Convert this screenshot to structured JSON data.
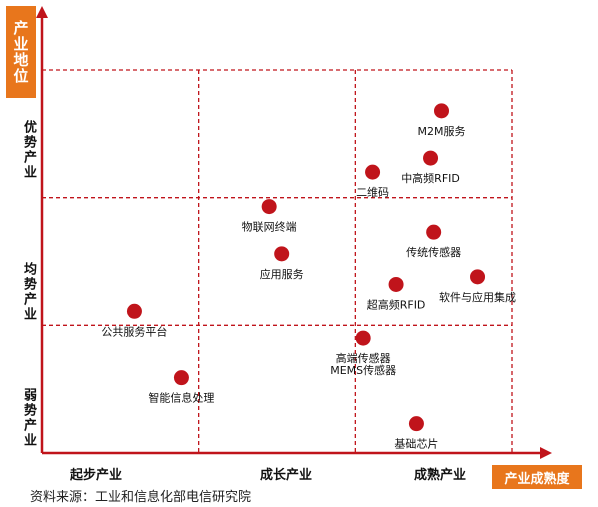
{
  "chart_data": {
    "type": "scatter",
    "xlabel": "产业成熟度",
    "ylabel": "产业地位",
    "x_categories": [
      "起步产业",
      "成长产业",
      "成熟产业"
    ],
    "y_categories": [
      "优势产业",
      "均势产业",
      "弱势产业"
    ],
    "xlim": [
      0,
      3
    ],
    "ylim": [
      0,
      3
    ],
    "grid": true,
    "colors": {
      "marker": "#c0141b",
      "grid": "#c0141b",
      "axis": "#c0141b",
      "accent": "#e8761c"
    },
    "points": [
      {
        "label": "M2M服务",
        "x": 2.55,
        "y": 2.68
      },
      {
        "label": "中高频RFID",
        "x": 2.48,
        "y": 2.31
      },
      {
        "label": "二维码",
        "x": 2.11,
        "y": 2.2
      },
      {
        "label": "物联网终端",
        "x": 1.45,
        "y": 1.93
      },
      {
        "label": "传统传感器",
        "x": 2.5,
        "y": 1.73
      },
      {
        "label": "应用服务",
        "x": 1.53,
        "y": 1.56
      },
      {
        "label": "软件与应用集成",
        "x": 2.78,
        "y": 1.38
      },
      {
        "label": "超高频RFID",
        "x": 2.26,
        "y": 1.32
      },
      {
        "label": "公共服务平台",
        "x": 0.59,
        "y": 1.11
      },
      {
        "label": "高端传感器\nMEMS传感器",
        "x": 2.05,
        "y": 0.9
      },
      {
        "label": "智能信息处理",
        "x": 0.89,
        "y": 0.59
      },
      {
        "label": "基础芯片",
        "x": 2.39,
        "y": 0.23
      }
    ]
  },
  "source": "资料来源：工业和信息化部电信研究院"
}
